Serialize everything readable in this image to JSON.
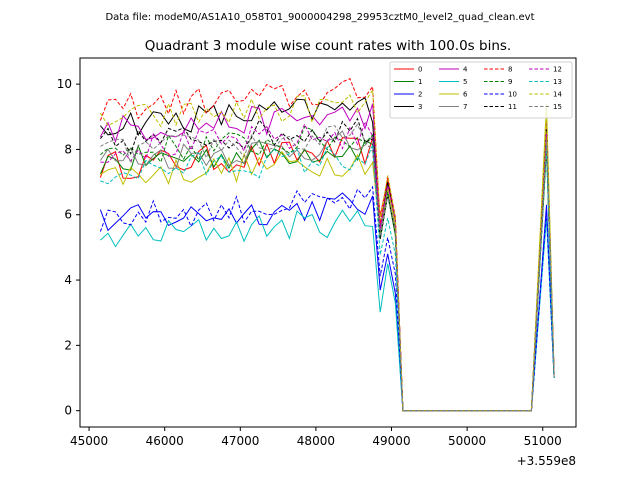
{
  "chart_data": {
    "type": "line",
    "suptitle": "Data file: modeM0/AS1A10_058T01_9000004298_29953cztM0_level2_quad_clean.evt",
    "title": "Quadrant 3 module wise count rates with 100.0s bins.",
    "xlabel": "",
    "ylabel": "",
    "offset_label": "+3.559e8",
    "xlim": [
      44880,
      51440
    ],
    "ylim": [
      -0.5,
      10.8
    ],
    "xticks": [
      45000,
      46000,
      47000,
      48000,
      49000,
      50000,
      51000
    ],
    "xtick_labels": [
      "45000",
      "46000",
      "47000",
      "48000",
      "49000",
      "50000",
      "51000"
    ],
    "yticks": [
      0,
      2,
      4,
      6,
      8,
      10
    ],
    "ytick_labels": [
      "0",
      "2",
      "4",
      "6",
      "8",
      "10"
    ],
    "grid": false,
    "legend_location": "top-right",
    "series": [
      {
        "name": "0",
        "color": "#ff0000",
        "style": "solid",
        "base": 7.5,
        "drop": 6.8,
        "peak": 8.3,
        "end": 1.1
      },
      {
        "name": "1",
        "color": "#008000",
        "style": "solid",
        "base": 7.6,
        "drop": 6.3,
        "peak": 8.0,
        "end": 1.0
      },
      {
        "name": "2",
        "color": "#0000ff",
        "style": "solid",
        "base": 5.8,
        "drop": 4.5,
        "peak": 6.3,
        "end": 1.0
      },
      {
        "name": "3",
        "color": "#000000",
        "style": "solid",
        "base": 8.8,
        "drop": 6.7,
        "peak": 8.9,
        "end": 1.1
      },
      {
        "name": "4",
        "color": "#bf00bf",
        "style": "solid",
        "base": 8.6,
        "drop": 6.5,
        "peak": 8.8,
        "end": 1.1
      },
      {
        "name": "5",
        "color": "#00bfbf",
        "style": "solid",
        "base": 5.3,
        "drop": 4.2,
        "peak": 5.9,
        "end": 1.0
      },
      {
        "name": "6",
        "color": "#bfbf00",
        "style": "solid",
        "base": 7.2,
        "drop": 6.5,
        "peak": 9.4,
        "end": 1.1
      },
      {
        "name": "7",
        "color": "#808080",
        "style": "solid",
        "base": 7.7,
        "drop": 6.3,
        "peak": 8.1,
        "end": 1.0
      },
      {
        "name": "8",
        "color": "#ff0000",
        "style": "dashed",
        "base": 9.3,
        "drop": 6.9,
        "peak": 8.6,
        "end": 1.1
      },
      {
        "name": "9",
        "color": "#008000",
        "style": "dashed",
        "base": 7.9,
        "drop": 6.4,
        "peak": 8.0,
        "end": 1.0
      },
      {
        "name": "10",
        "color": "#0000ff",
        "style": "dashed",
        "base": 5.9,
        "drop": 5.0,
        "peak": 6.1,
        "end": 1.0
      },
      {
        "name": "11",
        "color": "#000000",
        "style": "dashed",
        "base": 8.2,
        "drop": 6.3,
        "peak": 8.6,
        "end": 1.0
      },
      {
        "name": "12",
        "color": "#bf00bf",
        "style": "dashed",
        "base": 8.0,
        "drop": 6.6,
        "peak": 8.5,
        "end": 1.1
      },
      {
        "name": "13",
        "color": "#00bfbf",
        "style": "dashed",
        "base": 7.3,
        "drop": 5.6,
        "peak": 8.1,
        "end": 1.0
      },
      {
        "name": "14",
        "color": "#bfbf00",
        "style": "dashed",
        "base": 8.9,
        "drop": 6.9,
        "peak": 9.1,
        "end": 1.1
      },
      {
        "name": "15",
        "color": "#808080",
        "style": "dashed",
        "base": 7.9,
        "drop": 6.3,
        "peak": 8.3,
        "end": 1.0
      }
    ],
    "x_segments": {
      "active1": [
        45150,
        48750
      ],
      "gap_active": [
        48750,
        49150
      ],
      "zero": [
        49150,
        50850
      ],
      "active2": [
        50850,
        51150
      ]
    }
  }
}
